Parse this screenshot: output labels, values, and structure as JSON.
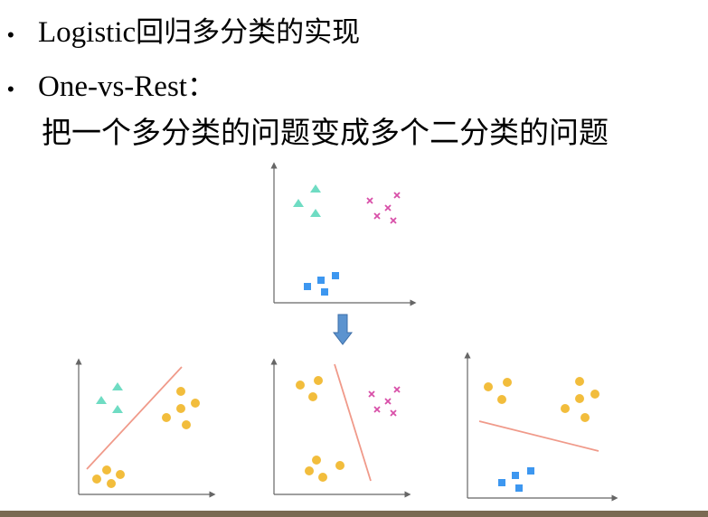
{
  "slide": {
    "bullets": [
      {
        "latin": "Logistic",
        "cjk": "回归多分类的实现"
      },
      {
        "latin": "One-vs-Rest",
        "cjk": "："
      }
    ],
    "description": "把一个多分类的问题变成多个二分类的问题"
  },
  "colors": {
    "triangle": "#6fdcc3",
    "cross": "#d84fa8",
    "square": "#3d97f0",
    "circle": "#f2bd3c",
    "separator": "#f09a8a",
    "arrow": "#5b93cf",
    "axis": "#666666",
    "footer": "#7a6a52"
  },
  "icons": {
    "bullet": "bullet-dot-icon",
    "arrow": "arrow-down-icon"
  }
}
